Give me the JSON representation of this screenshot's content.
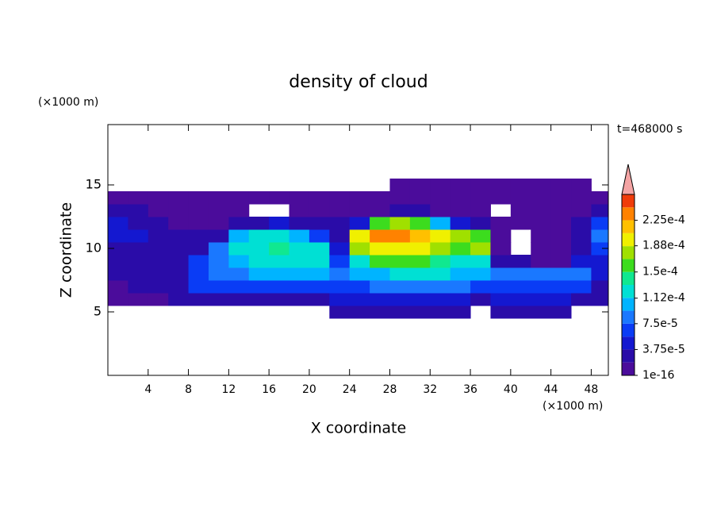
{
  "chart_data": {
    "type": "contour",
    "title": "density of cloud",
    "x_label": "X coordinate",
    "y_label": "Z coordinate",
    "x_unit": "(×1000 m)",
    "y_unit": "(×1000 m)",
    "time_label": "t=468000 s",
    "xlim": [
      0,
      49.7
    ],
    "ylim": [
      0,
      19.75
    ],
    "xticks": [
      4,
      8,
      12,
      16,
      20,
      24,
      28,
      32,
      36,
      40,
      44,
      48
    ],
    "yticks": [
      5,
      10,
      15
    ],
    "field": {
      "x": [
        1,
        3,
        5,
        7,
        9,
        11,
        13,
        15,
        17,
        19,
        21,
        23,
        25,
        27,
        29,
        31,
        33,
        35,
        37,
        39,
        41,
        43,
        45,
        47,
        49
      ],
      "z": [
        5,
        6,
        7,
        8,
        9,
        10,
        11,
        12,
        13,
        14,
        15
      ],
      "values": [
        [
          null,
          null,
          null,
          null,
          null,
          null,
          null,
          null,
          null,
          null,
          null,
          2e-05,
          2e-05,
          2e-05,
          2e-05,
          2e-05,
          2e-05,
          2e-05,
          null,
          2e-05,
          2e-05,
          2e-05,
          2e-05,
          null,
          null
        ],
        [
          1e-05,
          1e-05,
          1e-05,
          2e-05,
          3e-05,
          3e-05,
          3e-05,
          3e-05,
          3e-05,
          3e-05,
          3e-05,
          4e-05,
          4e-05,
          4e-05,
          4e-05,
          4e-05,
          4e-05,
          4e-05,
          3e-05,
          4e-05,
          4e-05,
          4e-05,
          4e-05,
          3e-05,
          2e-05
        ],
        [
          1e-05,
          2e-05,
          2e-05,
          3e-05,
          6e-05,
          6e-05,
          6e-05,
          7e-05,
          6e-05,
          6e-05,
          6e-05,
          6e-05,
          7e-05,
          8e-05,
          8e-05,
          8e-05,
          8e-05,
          8e-05,
          7e-05,
          7e-05,
          7e-05,
          7e-05,
          7e-05,
          6e-05,
          3e-05
        ],
        [
          2e-05,
          2e-05,
          2e-05,
          2e-05,
          7e-05,
          8e-05,
          9e-05,
          0.0001,
          0.0001,
          0.0001,
          0.0001,
          8e-05,
          0.0001,
          0.00011,
          0.00012,
          0.00012,
          0.00012,
          0.00011,
          0.0001,
          9e-05,
          9e-05,
          9e-05,
          9e-05,
          8e-05,
          4e-05
        ],
        [
          2e-05,
          2e-05,
          2e-05,
          2e-05,
          6e-05,
          9e-05,
          0.00011,
          0.00012,
          0.00012,
          0.00012,
          0.00012,
          7e-05,
          0.00013,
          0.00015,
          0.00015,
          0.00015,
          0.00014,
          0.00013,
          0.00013,
          3e-05,
          2e-05,
          1e-05,
          1e-05,
          4e-05,
          4e-05
        ],
        [
          3e-05,
          3e-05,
          2e-05,
          2e-05,
          3e-05,
          8e-05,
          0.00012,
          0.00013,
          0.00014,
          0.00013,
          0.00012,
          4e-05,
          0.00018,
          0.0002,
          0.0002,
          0.00019,
          0.00018,
          0.00016,
          0.00018,
          1e-05,
          null,
          1e-05,
          1e-05,
          3e-05,
          6e-05
        ],
        [
          5e-05,
          4e-05,
          2e-05,
          2e-05,
          2e-05,
          3e-05,
          0.0001,
          0.00012,
          0.00013,
          0.00011,
          6e-05,
          3e-05,
          0.0002,
          0.00023,
          0.00023,
          0.00022,
          0.0002,
          0.00017,
          0.00016,
          1e-05,
          null,
          1e-05,
          1e-05,
          2e-05,
          8e-05
        ],
        [
          4e-05,
          3e-05,
          2e-05,
          1e-05,
          1e-05,
          1e-05,
          2e-05,
          3e-05,
          4e-05,
          3e-05,
          2e-05,
          2e-05,
          5e-05,
          0.00015,
          0.00017,
          0.00015,
          0.0001,
          5e-05,
          3e-05,
          1e-05,
          1e-05,
          1e-05,
          1e-05,
          2e-05,
          6e-05
        ],
        [
          2e-05,
          2e-05,
          1e-05,
          1e-05,
          1e-05,
          1e-05,
          1e-05,
          null,
          null,
          1e-05,
          1e-05,
          1e-05,
          1e-05,
          1e-05,
          2e-05,
          2e-05,
          1e-05,
          1e-05,
          1e-05,
          null,
          1e-05,
          1e-05,
          1e-05,
          1e-05,
          3e-05
        ],
        [
          1e-05,
          1e-05,
          1e-05,
          1e-05,
          1e-05,
          1e-05,
          1e-05,
          1e-05,
          1e-05,
          1e-05,
          1e-05,
          1e-05,
          1e-05,
          1e-05,
          1e-05,
          1e-05,
          1e-05,
          1e-05,
          1e-05,
          1e-05,
          1e-05,
          1e-05,
          1e-05,
          1e-05,
          1e-05
        ],
        [
          null,
          null,
          null,
          null,
          null,
          null,
          null,
          null,
          null,
          null,
          null,
          null,
          null,
          null,
          1e-05,
          1e-05,
          1e-05,
          1e-05,
          1e-05,
          1e-05,
          1e-05,
          1e-05,
          1e-05,
          1e-05,
          null
        ]
      ]
    },
    "colorbar": {
      "levels": [
        1e-16,
        1.875e-05,
        3.75e-05,
        5.625e-05,
        7.5e-05,
        9.375e-05,
        0.0001125,
        0.00013125,
        0.00015,
        0.00016875,
        0.0001875,
        0.00020625,
        0.000225,
        0.00024375,
        0.0002625
      ],
      "colors": [
        "#4b0c9b",
        "#2a0ca8",
        "#1418d0",
        "#0a3cf5",
        "#1a78ff",
        "#00b4ff",
        "#00e0d4",
        "#10e890",
        "#3cdc1e",
        "#a0e000",
        "#f0f000",
        "#ffc000",
        "#ff8200",
        "#f03c0a"
      ],
      "extend_color": "#f4a4a4",
      "ticks": [
        {
          "value": 1e-16,
          "label": "1e-16"
        },
        {
          "value": 3.75e-05,
          "label": "3.75e-5"
        },
        {
          "value": 7.5e-05,
          "label": "7.5e-5"
        },
        {
          "value": 0.000112,
          "label": "1.12e-4"
        },
        {
          "value": 0.00015,
          "label": "1.5e-4"
        },
        {
          "value": 0.000188,
          "label": "1.88e-4"
        },
        {
          "value": 0.000225,
          "label": "2.25e-4"
        }
      ]
    }
  }
}
